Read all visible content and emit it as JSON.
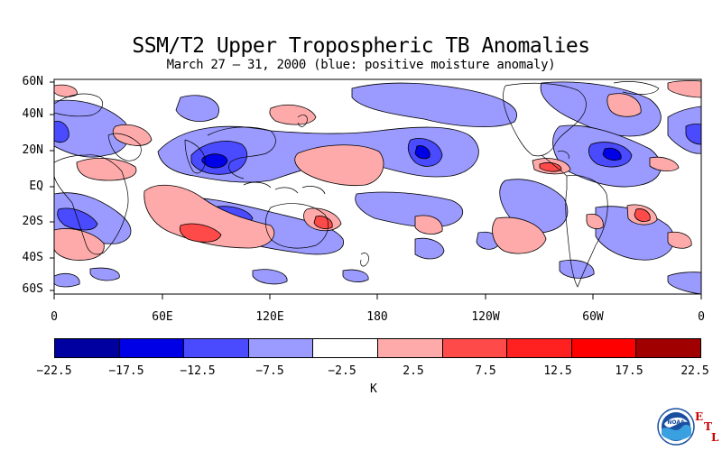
{
  "title": "SSM/T2 Upper Tropospheric TB Anomalies",
  "subtitle": "March 27 – 31, 2000 (blue: positive moisture anomaly)",
  "lat_labels": [
    "60N",
    "40N",
    "20N",
    "EQ",
    "20S",
    "40S",
    "60S"
  ],
  "lon_labels": [
    "0",
    "60E",
    "120E",
    "180",
    "120W",
    "60W",
    "0"
  ],
  "colorbar": {
    "colors": [
      "#0000a0",
      "#0000e6",
      "#4a4aff",
      "#9a9aff",
      "#ffffff",
      "#ffaaaa",
      "#ff4a4a",
      "#ff2020",
      "#ff0000",
      "#a00000"
    ],
    "tick_labels": [
      "−22.5",
      "−17.5",
      "−12.5",
      "−7.5",
      "−2.5",
      "2.5",
      "7.5",
      "12.5",
      "17.5",
      "22.5"
    ],
    "unit": "K"
  },
  "logo": {
    "name": "NOAA",
    "lab_letters": [
      "E",
      "T",
      "L"
    ]
  },
  "colors": {
    "light_blue": "#9a9aff",
    "mid_blue": "#4a4aff",
    "deep_blue": "#0000e6",
    "light_red": "#ffaaaa",
    "mid_red": "#ff4a4a"
  }
}
